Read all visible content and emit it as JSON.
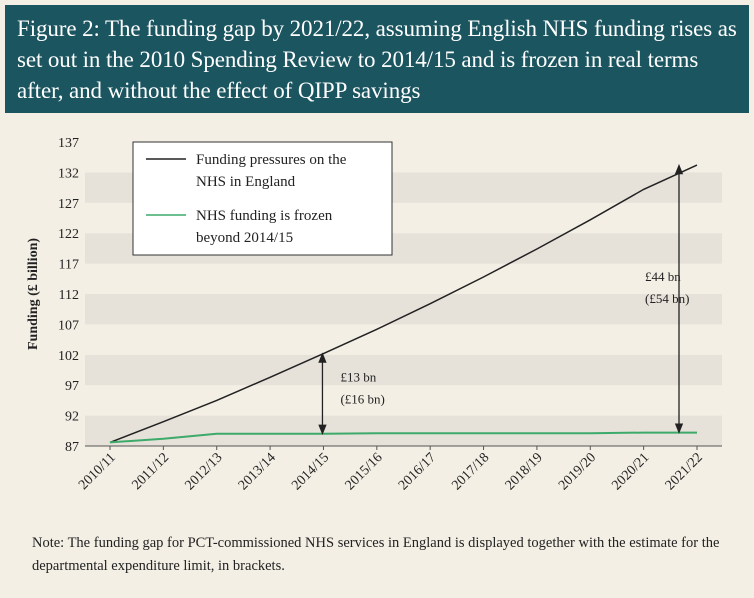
{
  "figure": {
    "title": "Figure 2: The funding gap by 2021/22, assuming English NHS funding rises as set out in the 2010 Spending Review to 2014/15 and is frozen in real terms after, and without the effect of QIPP savings",
    "note": "Note: The funding gap for PCT-commissioned NHS services in England is displayed together with the estimate for the departmental expenditure limit, in brackets."
  },
  "colors": {
    "header_bg": "#1b5560",
    "band_light": "#f3efe5",
    "band_dark": "#e6e1d9",
    "pressures_line": "#222222",
    "frozen_line": "#3daa6a"
  },
  "chart_data": {
    "type": "line",
    "title": "Figure 2: The funding gap by 2021/22, assuming English NHS funding rises as set out in the 2010 Spending Review to 2014/15 and is frozen in real terms after, and without the effect of QIPP savings",
    "xlabel": "",
    "ylabel": "Funding (£ billion)",
    "categories": [
      "2010/11",
      "2011/12",
      "2012/13",
      "2013/14",
      "2014/15",
      "2015/16",
      "2016/17",
      "2017/18",
      "2018/19",
      "2019/20",
      "2020/21",
      "2021/22"
    ],
    "yticks": [
      87,
      92,
      97,
      102,
      107,
      112,
      117,
      122,
      127,
      132,
      137
    ],
    "ylim": [
      87,
      137
    ],
    "grid": "alternating horizontal bands",
    "legend_position": "top-left",
    "series": [
      {
        "name": "Funding pressures on the NHS in England",
        "legend_lines": [
          "Funding pressures on the",
          "NHS in England"
        ],
        "color": "#222222",
        "values": [
          87.6,
          91.0,
          94.5,
          98.3,
          102.2,
          106.2,
          110.4,
          114.8,
          119.4,
          124.2,
          129.2,
          133.2
        ]
      },
      {
        "name": "NHS funding is frozen beyond 2014/15",
        "legend_lines": [
          "NHS funding is frozen",
          "beyond 2014/15"
        ],
        "color": "#3daa6a",
        "values": [
          87.6,
          88.2,
          89.0,
          89.0,
          89.0,
          89.1,
          89.1,
          89.1,
          89.1,
          89.1,
          89.2,
          89.2
        ]
      }
    ],
    "annotations": [
      {
        "category": "2014/15",
        "from": 89.0,
        "to": 102.2,
        "lines": [
          "£13 bn",
          "(£16 bn)"
        ]
      },
      {
        "category": "2021/22",
        "from": 89.2,
        "to": 133.2,
        "lines": [
          "£44 bn",
          "(£54 bn)"
        ]
      }
    ]
  }
}
